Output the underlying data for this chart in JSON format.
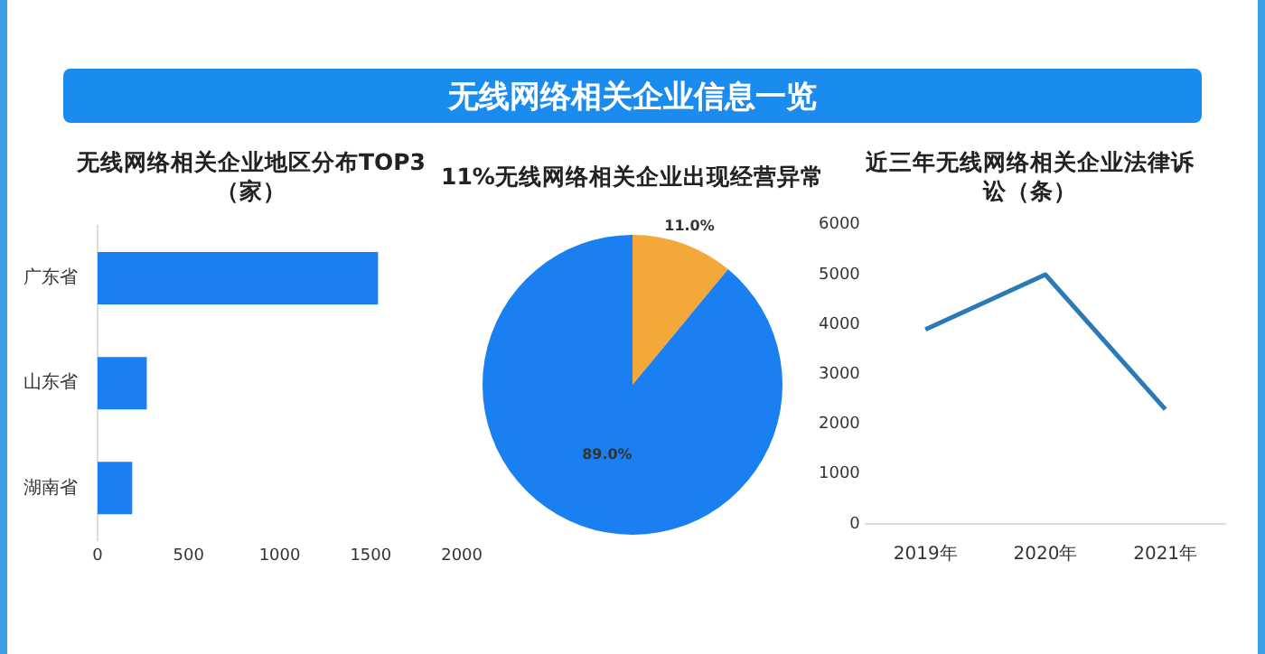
{
  "chart_data": [
    {
      "type": "other",
      "title": "无线网络相关企业信息一览"
    },
    {
      "type": "bar",
      "orientation": "horizontal",
      "title": "无线网络相关企业地区分布TOP3（家）",
      "categories": [
        "广东省",
        "山东省",
        "湖南省"
      ],
      "values": [
        1540,
        270,
        190
      ],
      "color": "#1a7ff0",
      "xlim": [
        0,
        2000
      ],
      "xticks": [
        0,
        500,
        1000,
        1500,
        2000
      ],
      "grid": false,
      "legend": false
    },
    {
      "type": "pie",
      "title": "11%无线网络相关企业出现经营异常",
      "categories": [
        null,
        null
      ],
      "values": [
        11.0,
        89.0
      ],
      "colors": [
        "#f5a83a",
        "#1a7ff0"
      ],
      "value_labels": [
        "11.0%",
        "89.0%"
      ],
      "legend": false
    },
    {
      "type": "line",
      "title": "近三年无线网络相关企业法律诉讼（条）",
      "categories": [
        "2019年",
        "2020年",
        "2021年"
      ],
      "values": [
        3900,
        5000,
        2300
      ],
      "color": "#2a7ab8",
      "ylim": [
        0,
        6000
      ],
      "yticks": [
        0,
        1000,
        2000,
        3000,
        4000,
        5000,
        6000
      ],
      "grid": false,
      "legend": false,
      "marker": "none"
    }
  ]
}
